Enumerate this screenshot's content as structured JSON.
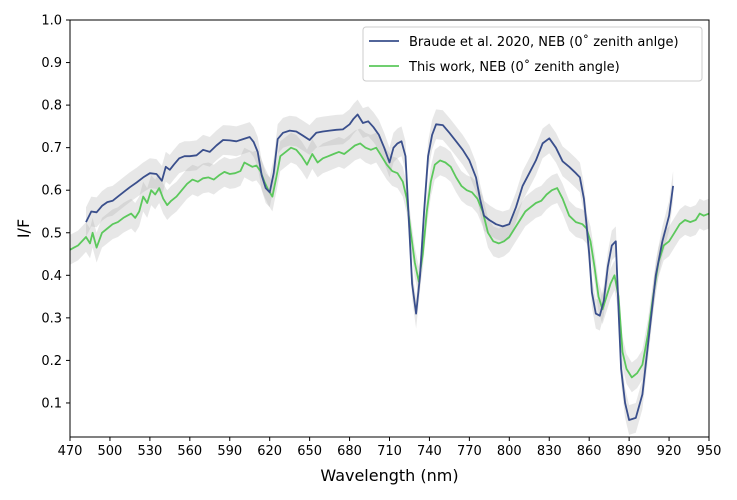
{
  "chart_data": {
    "type": "line",
    "xlabel": "Wavelength (nm)",
    "ylabel": "I/F",
    "xlim": [
      470,
      950
    ],
    "ylim": [
      0.02,
      1.0
    ],
    "xticks": [
      470,
      500,
      530,
      560,
      590,
      620,
      650,
      680,
      710,
      740,
      770,
      800,
      830,
      860,
      890,
      920,
      950
    ],
    "xtick_labels": [
      "470",
      "500",
      "530",
      "560",
      "590",
      "620",
      "650",
      "680",
      "710",
      "740",
      "770",
      "800",
      "830",
      "860",
      "890",
      "920",
      "950"
    ],
    "yticks": [
      0.1,
      0.2,
      0.3,
      0.4,
      0.5,
      0.6,
      0.7,
      0.8,
      0.9,
      1.0
    ],
    "ytick_labels": [
      "0.1",
      "0.2",
      "0.3",
      "0.4",
      "0.5",
      "0.6",
      "0.7",
      "0.8",
      "0.9",
      "1.0"
    ],
    "grid": false,
    "legend_position": "top-right",
    "colors": {
      "braude": "#3a4f8c",
      "thiswork": "#5cc85c",
      "band": "#b0b0b0"
    },
    "series": [
      {
        "name": "Braude et al. 2020, NEB (0$^{\\circ}$ zenith anlge)",
        "legend_label": "Braude et al. 2020, NEB (0˚ zenith anlge)",
        "x": [
          482,
          486,
          490,
          494,
          498,
          502,
          506,
          510,
          515,
          520,
          525,
          530,
          535,
          539,
          542,
          545,
          548,
          552,
          556,
          560,
          565,
          570,
          575,
          580,
          585,
          590,
          595,
          600,
          605,
          608,
          611,
          614,
          617,
          620,
          623,
          626,
          630,
          635,
          640,
          645,
          650,
          655,
          660,
          665,
          670,
          675,
          680,
          683,
          686,
          690,
          694,
          698,
          702,
          706,
          710,
          713,
          716,
          719,
          722,
          725,
          727,
          730,
          733,
          736,
          739,
          742,
          745,
          750,
          755,
          760,
          765,
          770,
          775,
          778,
          781,
          785,
          790,
          795,
          800,
          805,
          810,
          815,
          820,
          825,
          830,
          835,
          840,
          845,
          850,
          853,
          856,
          858,
          860,
          862,
          865,
          868,
          871,
          874,
          877,
          880,
          882,
          884,
          887,
          890,
          895,
          900,
          905,
          910,
          915,
          920,
          923
        ],
        "values": [
          0.525,
          0.55,
          0.548,
          0.563,
          0.572,
          0.575,
          0.585,
          0.595,
          0.607,
          0.618,
          0.63,
          0.64,
          0.638,
          0.622,
          0.655,
          0.648,
          0.66,
          0.675,
          0.68,
          0.68,
          0.682,
          0.695,
          0.69,
          0.705,
          0.718,
          0.717,
          0.715,
          0.72,
          0.725,
          0.713,
          0.69,
          0.635,
          0.605,
          0.595,
          0.64,
          0.72,
          0.735,
          0.74,
          0.738,
          0.728,
          0.718,
          0.735,
          0.738,
          0.74,
          0.742,
          0.743,
          0.755,
          0.768,
          0.778,
          0.758,
          0.762,
          0.748,
          0.73,
          0.7,
          0.665,
          0.7,
          0.71,
          0.715,
          0.68,
          0.5,
          0.38,
          0.31,
          0.4,
          0.55,
          0.68,
          0.73,
          0.755,
          0.753,
          0.735,
          0.715,
          0.695,
          0.67,
          0.63,
          0.58,
          0.54,
          0.53,
          0.52,
          0.515,
          0.52,
          0.56,
          0.61,
          0.64,
          0.67,
          0.71,
          0.722,
          0.7,
          0.668,
          0.655,
          0.64,
          0.63,
          0.58,
          0.52,
          0.45,
          0.36,
          0.31,
          0.305,
          0.34,
          0.42,
          0.47,
          0.48,
          0.32,
          0.18,
          0.1,
          0.06,
          0.065,
          0.12,
          0.26,
          0.4,
          0.48,
          0.54,
          0.61
        ]
      },
      {
        "name": "This work, NEB (0$^{\\circ}$ zenith angle)",
        "legend_label": "This work, NEB (0˚ zenith angle)",
        "x": [
          470,
          473,
          476,
          479,
          482,
          485,
          487,
          490,
          494,
          498,
          502,
          506,
          510,
          513,
          516,
          519,
          522,
          525,
          528,
          531,
          534,
          537,
          540,
          543,
          546,
          550,
          554,
          558,
          562,
          566,
          570,
          574,
          578,
          582,
          586,
          590,
          594,
          598,
          601,
          604,
          607,
          610,
          613,
          616,
          619,
          622,
          625,
          628,
          632,
          636,
          640,
          644,
          648,
          652,
          656,
          660,
          664,
          668,
          672,
          676,
          680,
          684,
          688,
          692,
          696,
          700,
          704,
          708,
          712,
          716,
          720,
          723,
          726,
          729,
          732,
          735,
          738,
          741,
          744,
          748,
          752,
          756,
          760,
          764,
          768,
          772,
          776,
          780,
          784,
          788,
          792,
          796,
          800,
          804,
          808,
          812,
          816,
          820,
          824,
          828,
          832,
          836,
          840,
          845,
          850,
          855,
          858,
          861,
          864,
          867,
          870,
          873,
          876,
          879,
          882,
          885,
          888,
          892,
          896,
          900,
          904,
          908,
          912,
          916,
          920,
          924,
          928,
          932,
          936,
          940,
          943,
          946,
          950
        ],
        "values": [
          0.46,
          0.465,
          0.47,
          0.48,
          0.49,
          0.475,
          0.5,
          0.465,
          0.5,
          0.51,
          0.52,
          0.525,
          0.535,
          0.54,
          0.545,
          0.535,
          0.55,
          0.585,
          0.57,
          0.6,
          0.59,
          0.605,
          0.58,
          0.565,
          0.575,
          0.585,
          0.6,
          0.615,
          0.625,
          0.62,
          0.628,
          0.63,
          0.625,
          0.635,
          0.643,
          0.638,
          0.64,
          0.645,
          0.665,
          0.66,
          0.655,
          0.658,
          0.645,
          0.62,
          0.6,
          0.585,
          0.63,
          0.68,
          0.69,
          0.7,
          0.695,
          0.68,
          0.66,
          0.685,
          0.665,
          0.675,
          0.68,
          0.685,
          0.69,
          0.685,
          0.695,
          0.705,
          0.71,
          0.7,
          0.695,
          0.7,
          0.68,
          0.66,
          0.645,
          0.64,
          0.62,
          0.58,
          0.5,
          0.43,
          0.385,
          0.45,
          0.55,
          0.62,
          0.66,
          0.67,
          0.665,
          0.655,
          0.63,
          0.61,
          0.6,
          0.595,
          0.58,
          0.55,
          0.5,
          0.48,
          0.475,
          0.48,
          0.49,
          0.51,
          0.53,
          0.55,
          0.56,
          0.57,
          0.575,
          0.59,
          0.6,
          0.605,
          0.58,
          0.54,
          0.525,
          0.52,
          0.51,
          0.48,
          0.42,
          0.35,
          0.32,
          0.35,
          0.38,
          0.4,
          0.35,
          0.22,
          0.18,
          0.16,
          0.17,
          0.19,
          0.26,
          0.35,
          0.43,
          0.47,
          0.48,
          0.5,
          0.52,
          0.53,
          0.525,
          0.53,
          0.545,
          0.54,
          0.545
        ]
      }
    ],
    "uncertainty_bands": [
      {
        "series": "Braude et al. 2020, NEB (0$^{\\circ}$ zenith anlge)",
        "half_width": 0.035
      },
      {
        "series": "This work, NEB (0$^{\\circ}$ zenith angle)",
        "half_width": 0.035
      }
    ]
  }
}
